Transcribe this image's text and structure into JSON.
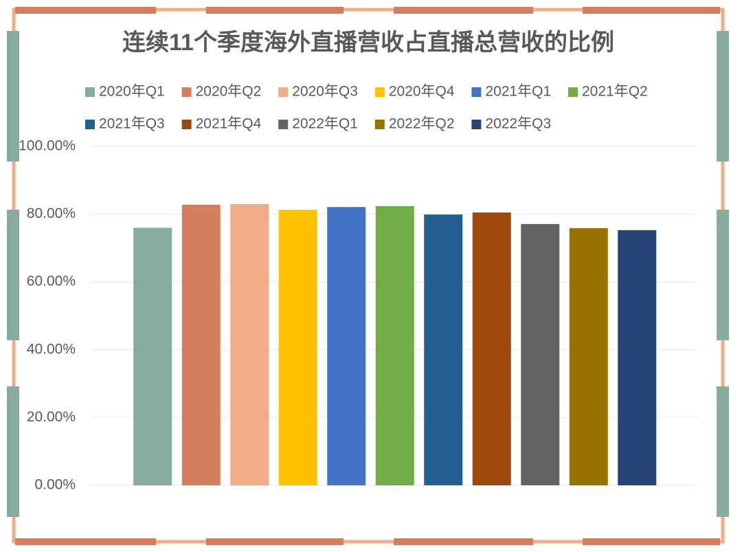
{
  "chart_data": {
    "type": "bar",
    "title": "连续11个季度海外直播营收占直播总营收的比例",
    "categories": [
      null
    ],
    "series": [
      {
        "name": "2020年Q1",
        "color": "#87ab9f",
        "values": [
          76
        ]
      },
      {
        "name": "2020年Q2",
        "color": "#d47e5f",
        "values": [
          82.8
        ]
      },
      {
        "name": "2020年Q3",
        "color": "#f0ac86",
        "values": [
          83
        ]
      },
      {
        "name": "2020年Q4",
        "color": "#ffc000",
        "values": [
          81.3
        ]
      },
      {
        "name": "2021年Q1",
        "color": "#4472c4",
        "values": [
          82.1
        ]
      },
      {
        "name": "2021年Q2",
        "color": "#70ad47",
        "values": [
          82.4
        ]
      },
      {
        "name": "2021年Q3",
        "color": "#255e91",
        "values": [
          79.9
        ]
      },
      {
        "name": "2021年Q4",
        "color": "#9e480e",
        "values": [
          80.5
        ]
      },
      {
        "name": "2022年Q1",
        "color": "#636363",
        "values": [
          77.1
        ]
      },
      {
        "name": "2022年Q2",
        "color": "#997300",
        "values": [
          75.9
        ]
      },
      {
        "name": "2022年Q3",
        "color": "#264478",
        "values": [
          75.3
        ]
      }
    ],
    "ylim": [
      0,
      100
    ],
    "yticks": [
      {
        "value": 0,
        "label": "0.00%"
      },
      {
        "value": 20,
        "label": "20.00%"
      },
      {
        "value": 40,
        "label": "40.00%"
      },
      {
        "value": 60,
        "label": "60.00%"
      },
      {
        "value": 80,
        "label": "80.00%"
      },
      {
        "value": 100,
        "label": "100.00%"
      }
    ],
    "grid": true,
    "legend": "top"
  }
}
